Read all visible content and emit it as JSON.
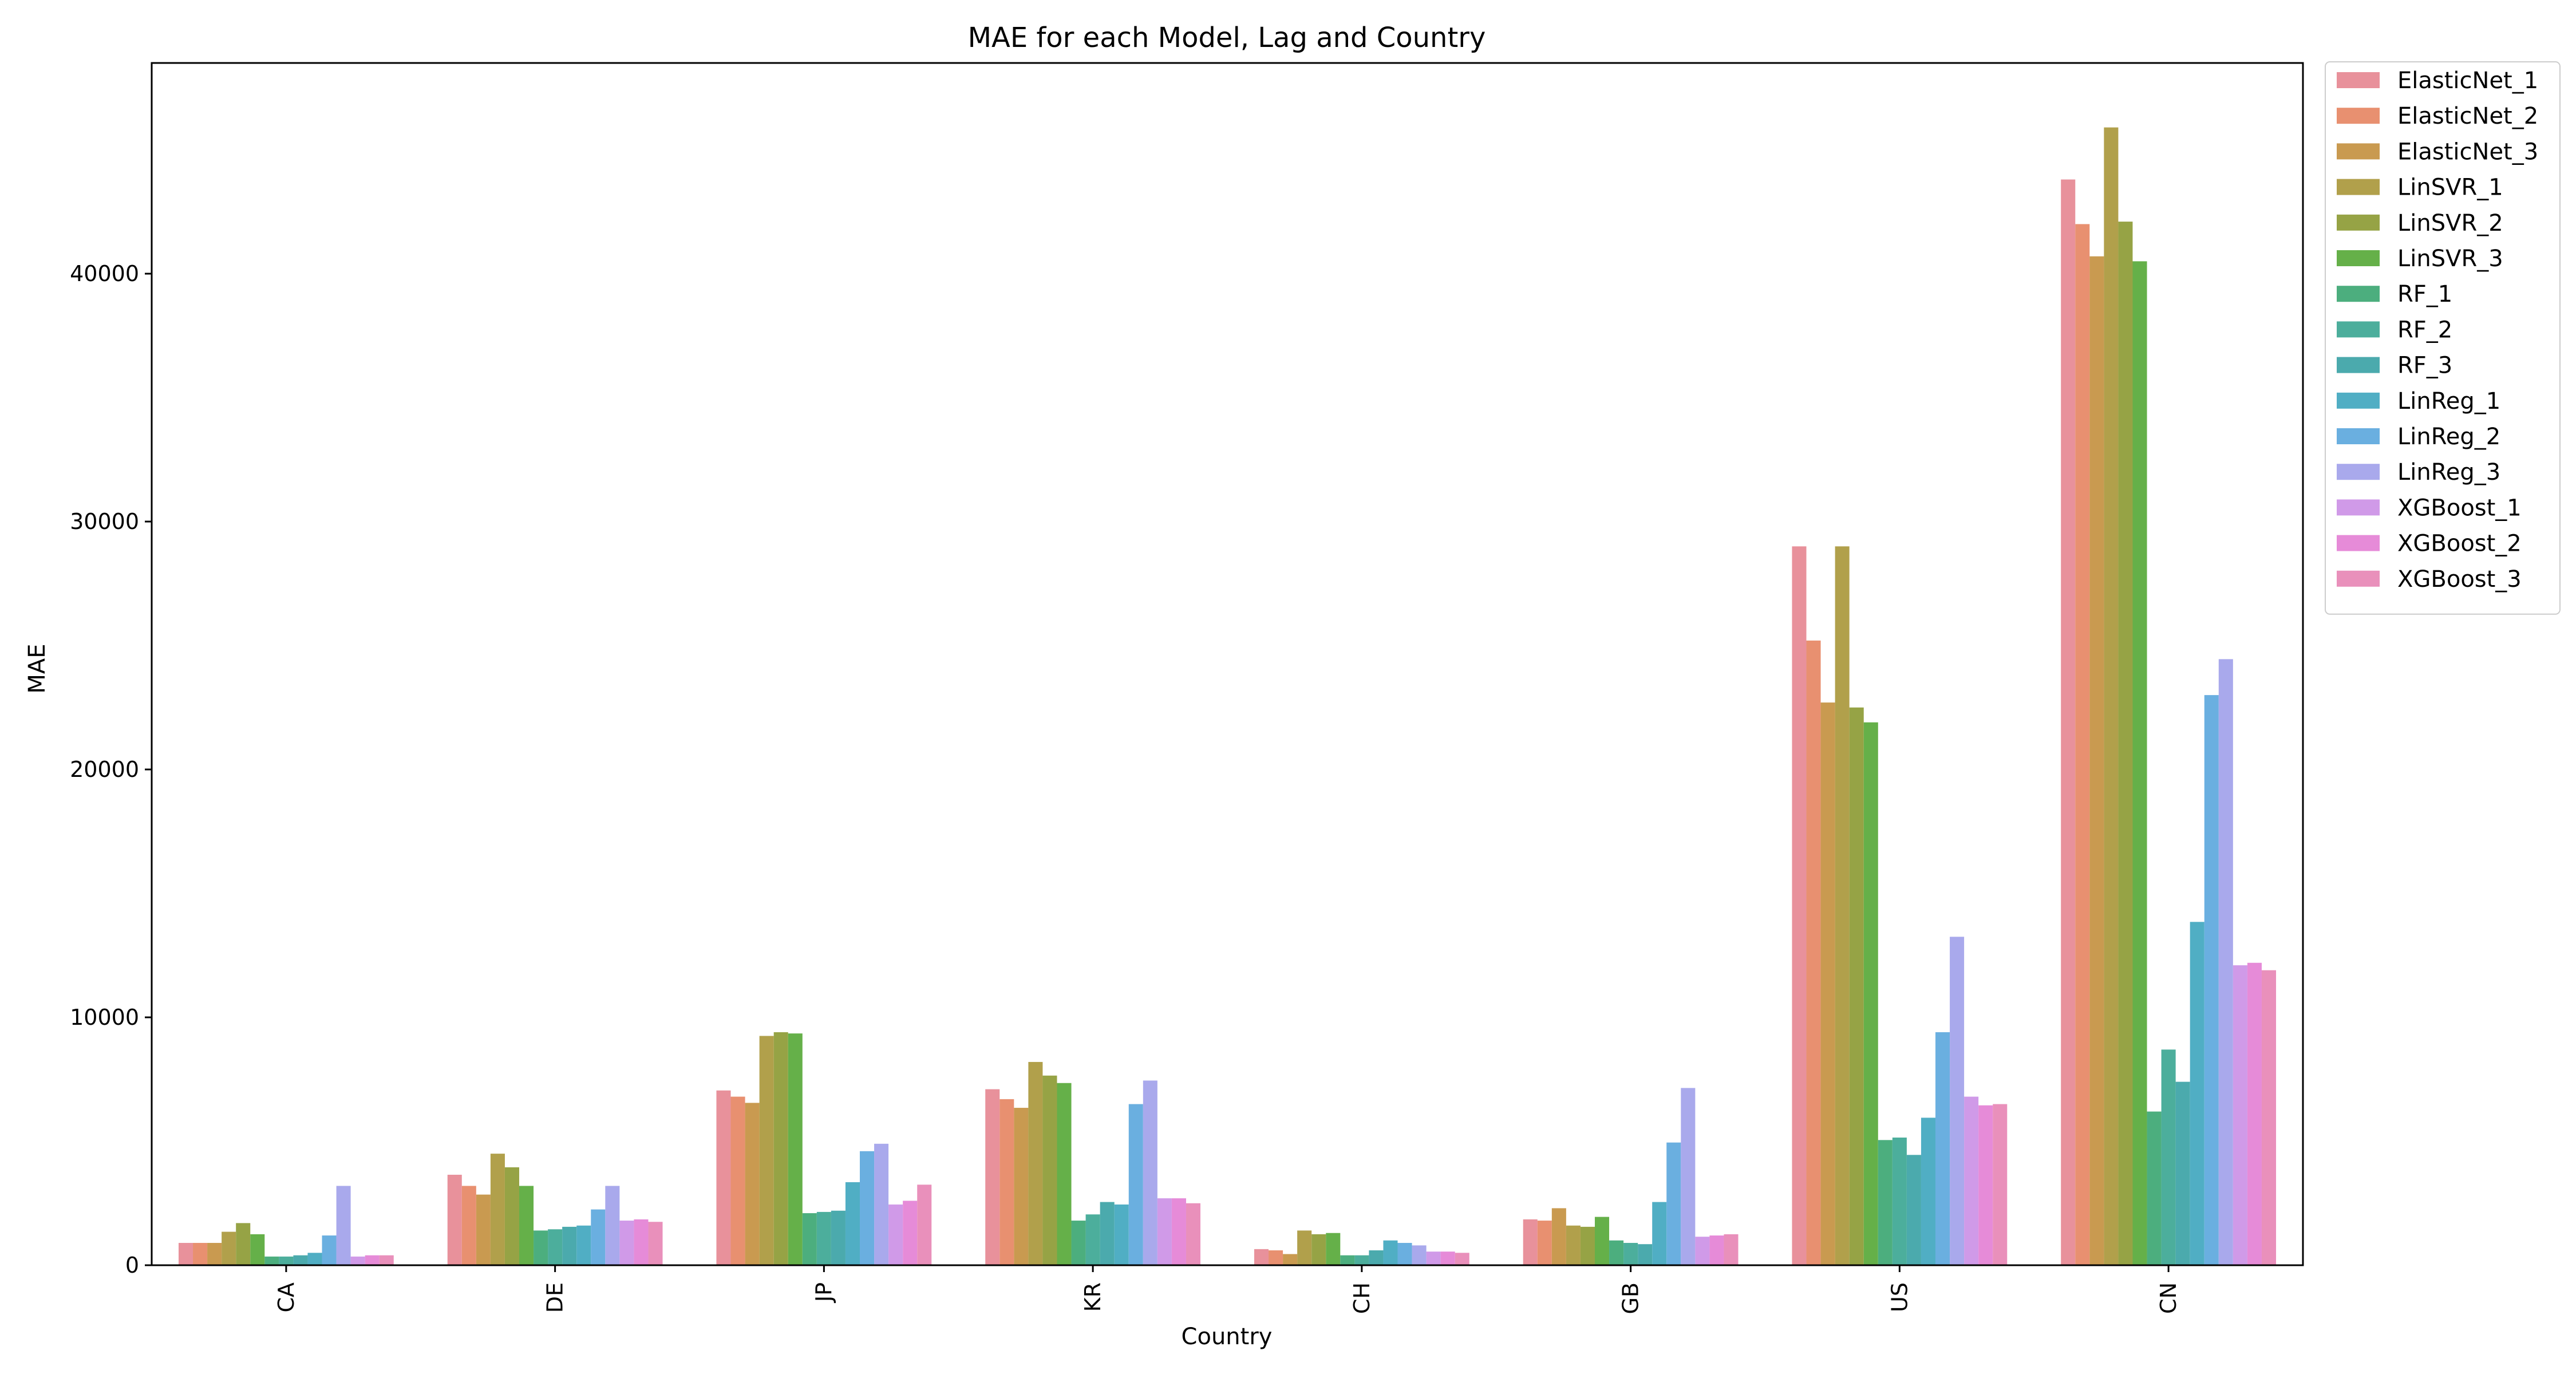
{
  "chart_data": {
    "type": "bar",
    "title": "MAE for each Model, Lag and Country",
    "xlabel": "Country",
    "ylabel": "MAE",
    "ylim": [
      0,
      48500
    ],
    "yticks": [
      0,
      10000,
      20000,
      30000,
      40000
    ],
    "grid": false,
    "legend_position": "outside right, top",
    "categories": [
      "CA",
      "DE",
      "JP",
      "KR",
      "CH",
      "GB",
      "US",
      "CN"
    ],
    "series": [
      {
        "name": "ElasticNet_1",
        "color": "#e8919b",
        "values": [
          900,
          3650,
          7050,
          7100,
          650,
          1850,
          29000,
          43800
        ]
      },
      {
        "name": "ElasticNet_2",
        "color": "#e89070",
        "values": [
          900,
          3200,
          6800,
          6700,
          600,
          1800,
          25200,
          42000
        ]
      },
      {
        "name": "ElasticNet_3",
        "color": "#c99a50",
        "values": [
          900,
          2850,
          6550,
          6350,
          450,
          2300,
          22700,
          40700
        ]
      },
      {
        "name": "LinSVR_1",
        "color": "#b1a04b",
        "values": [
          1350,
          4500,
          9250,
          8200,
          1400,
          1600,
          29000,
          45900
        ]
      },
      {
        "name": "LinSVR_2",
        "color": "#96a345",
        "values": [
          1700,
          3950,
          9400,
          7650,
          1250,
          1550,
          22500,
          42100
        ]
      },
      {
        "name": "LinSVR_3",
        "color": "#65b049",
        "values": [
          1250,
          3200,
          9350,
          7350,
          1300,
          1950,
          21900,
          40500
        ]
      },
      {
        "name": "RF_1",
        "color": "#4cae7e",
        "values": [
          350,
          1400,
          2100,
          1800,
          400,
          1000,
          5050,
          6200
        ]
      },
      {
        "name": "RF_2",
        "color": "#4cae9c",
        "values": [
          350,
          1450,
          2150,
          2050,
          400,
          900,
          5150,
          8700
        ]
      },
      {
        "name": "RF_3",
        "color": "#4baaad",
        "values": [
          400,
          1550,
          2200,
          2550,
          600,
          850,
          4450,
          7400
        ]
      },
      {
        "name": "LinReg_1",
        "color": "#50aec4",
        "values": [
          500,
          1600,
          3350,
          2450,
          1000,
          2550,
          5950,
          13850
        ]
      },
      {
        "name": "LinReg_2",
        "color": "#6aafe0",
        "values": [
          1200,
          2250,
          4600,
          6500,
          900,
          4950,
          9400,
          23000
        ]
      },
      {
        "name": "LinReg_3",
        "color": "#a9a9ec",
        "values": [
          3200,
          3200,
          4900,
          7450,
          800,
          7150,
          13250,
          24450
        ]
      },
      {
        "name": "XGBoost_1",
        "color": "#d09ae8",
        "values": [
          350,
          1800,
          2450,
          2700,
          550,
          1150,
          6800,
          12100
        ]
      },
      {
        "name": "XGBoost_2",
        "color": "#e68bd8",
        "values": [
          400,
          1850,
          2600,
          2700,
          550,
          1200,
          6450,
          12200
        ]
      },
      {
        "name": "XGBoost_3",
        "color": "#e990bb",
        "values": [
          400,
          1750,
          3250,
          2500,
          500,
          1250,
          6500,
          11900
        ]
      }
    ]
  }
}
